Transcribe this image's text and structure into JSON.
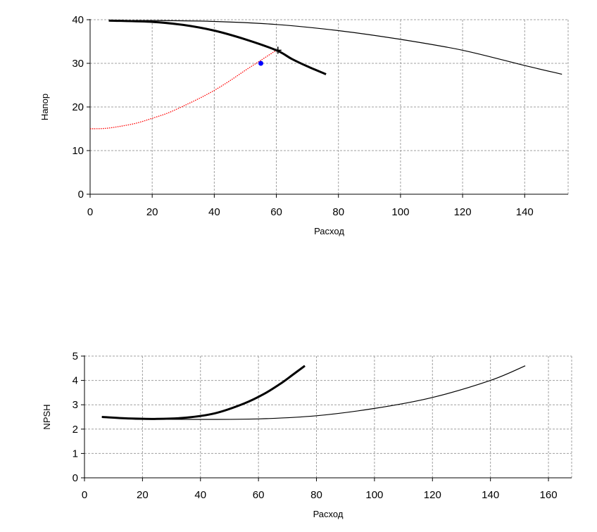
{
  "chart_data": [
    {
      "type": "line",
      "title": "",
      "xlabel": "Расход",
      "ylabel": "Напор",
      "xlim": [
        0,
        154
      ],
      "ylim": [
        0,
        40
      ],
      "x_ticks": [
        0,
        20,
        40,
        60,
        80,
        100,
        120,
        140
      ],
      "y_ticks": [
        0,
        10,
        20,
        30,
        40
      ],
      "grid": true,
      "series": [
        {
          "style": "thin-black",
          "color": "#000000",
          "points": [
            [
              6,
              39.8
            ],
            [
              20,
              39.8
            ],
            [
              40,
              39.6
            ],
            [
              60,
              38.9
            ],
            [
              80,
              37.5
            ],
            [
              100,
              35.5
            ],
            [
              120,
              33
            ],
            [
              140,
              29.5
            ],
            [
              152,
              27.5
            ]
          ]
        },
        {
          "style": "thick-black",
          "color": "#000000",
          "points": [
            [
              6,
              39.8
            ],
            [
              20,
              39.5
            ],
            [
              30,
              38.8
            ],
            [
              40,
              37.5
            ],
            [
              50,
              35.5
            ],
            [
              60,
              33
            ],
            [
              65,
              31
            ],
            [
              70,
              29.3
            ],
            [
              76,
              27.5
            ]
          ]
        },
        {
          "style": "dotted-red",
          "color": "#ff0000",
          "points": [
            [
              0,
              15
            ],
            [
              5,
              15.1
            ],
            [
              10,
              15.6
            ],
            [
              15,
              16.3
            ],
            [
              20,
              17.4
            ],
            [
              25,
              18.6
            ],
            [
              30,
              20.2
            ],
            [
              35,
              21.9
            ],
            [
              40,
              23.8
            ],
            [
              45,
              26
            ],
            [
              50,
              28.4
            ],
            [
              55,
              30.7
            ],
            [
              60,
              33
            ]
          ]
        }
      ],
      "markers": [
        {
          "kind": "operating-point",
          "color": "#0000ff",
          "x": 55,
          "y": 30
        },
        {
          "kind": "intersection-cross",
          "color": "#000000",
          "x": 60.5,
          "y": 33
        }
      ]
    },
    {
      "type": "line",
      "title": "",
      "xlabel": "Расход",
      "ylabel": "NPSH",
      "xlim": [
        0,
        168
      ],
      "ylim": [
        0,
        5
      ],
      "x_ticks": [
        0,
        20,
        40,
        60,
        80,
        100,
        120,
        140,
        160
      ],
      "y_ticks": [
        0,
        1,
        2,
        3,
        4,
        5
      ],
      "grid": true,
      "series": [
        {
          "style": "thin-black",
          "color": "#000000",
          "points": [
            [
              6,
              2.5
            ],
            [
              20,
              2.42
            ],
            [
              40,
              2.4
            ],
            [
              60,
              2.42
            ],
            [
              80,
              2.55
            ],
            [
              100,
              2.85
            ],
            [
              120,
              3.3
            ],
            [
              140,
              4
            ],
            [
              152,
              4.6
            ]
          ]
        },
        {
          "style": "thick-black",
          "color": "#000000",
          "points": [
            [
              6,
              2.5
            ],
            [
              15,
              2.44
            ],
            [
              25,
              2.42
            ],
            [
              35,
              2.47
            ],
            [
              45,
              2.65
            ],
            [
              55,
              3.05
            ],
            [
              62,
              3.45
            ],
            [
              68,
              3.9
            ],
            [
              72,
              4.25
            ],
            [
              76,
              4.6
            ]
          ]
        }
      ]
    }
  ]
}
